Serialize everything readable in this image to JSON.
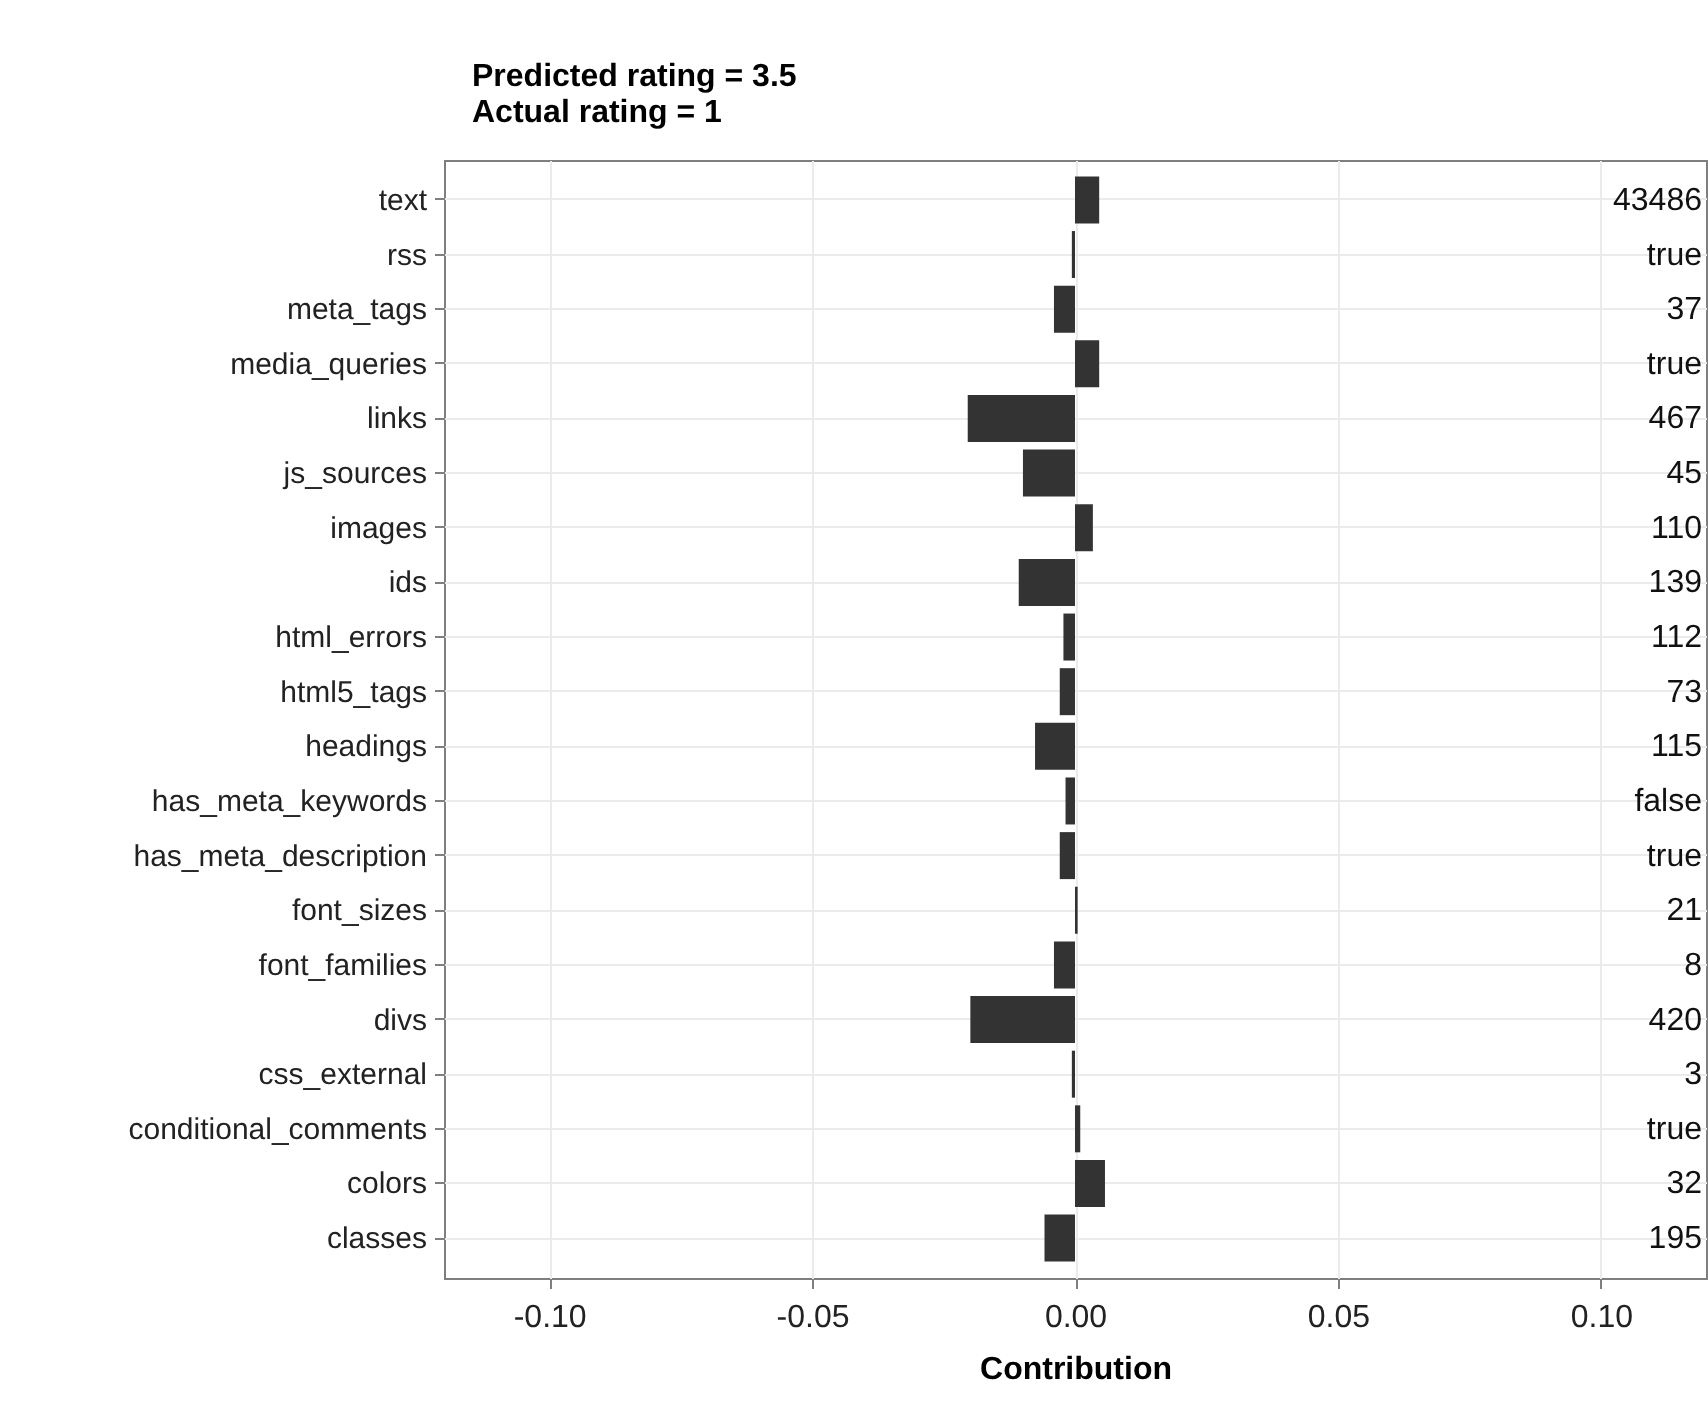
{
  "chart_data": {
    "type": "bar",
    "orientation": "horizontal",
    "title": "Predicted rating = 3.5",
    "subtitle": "Actual rating = 1",
    "xlabel": "Contribution",
    "categories": [
      "text",
      "rss",
      "meta_tags",
      "media_queries",
      "links",
      "js_sources",
      "images",
      "ids",
      "html_errors",
      "html5_tags",
      "headings",
      "has_meta_keywords",
      "has_meta_description",
      "font_sizes",
      "font_families",
      "divs",
      "css_external",
      "conditional_comments",
      "colors",
      "classes"
    ],
    "values": [
      0.0046,
      -0.0006,
      -0.004,
      0.0046,
      -0.0204,
      -0.0099,
      0.0034,
      -0.0107,
      -0.0022,
      -0.0029,
      -0.0076,
      -0.0018,
      -0.0029,
      0.0005,
      -0.004,
      -0.0199,
      -0.0006,
      0.001,
      0.0057,
      -0.0058
    ],
    "color": "#333333",
    "xlim": [
      -0.12,
      0.12
    ],
    "xticks": [
      {
        "value": -0.1,
        "label": "-0.10"
      },
      {
        "value": -0.05,
        "label": "-0.05"
      },
      {
        "value": 0,
        "label": "0.00"
      },
      {
        "value": 0.05,
        "label": "0.05"
      },
      {
        "value": 0.1,
        "label": "0.10"
      }
    ],
    "grid": true,
    "annotations": [
      "43486",
      "true",
      "37",
      "true",
      "467",
      "45",
      "110",
      "139",
      "112",
      "73",
      "115",
      "false",
      "true",
      "21",
      "8",
      "420",
      "3",
      "true",
      "32",
      "195"
    ]
  }
}
